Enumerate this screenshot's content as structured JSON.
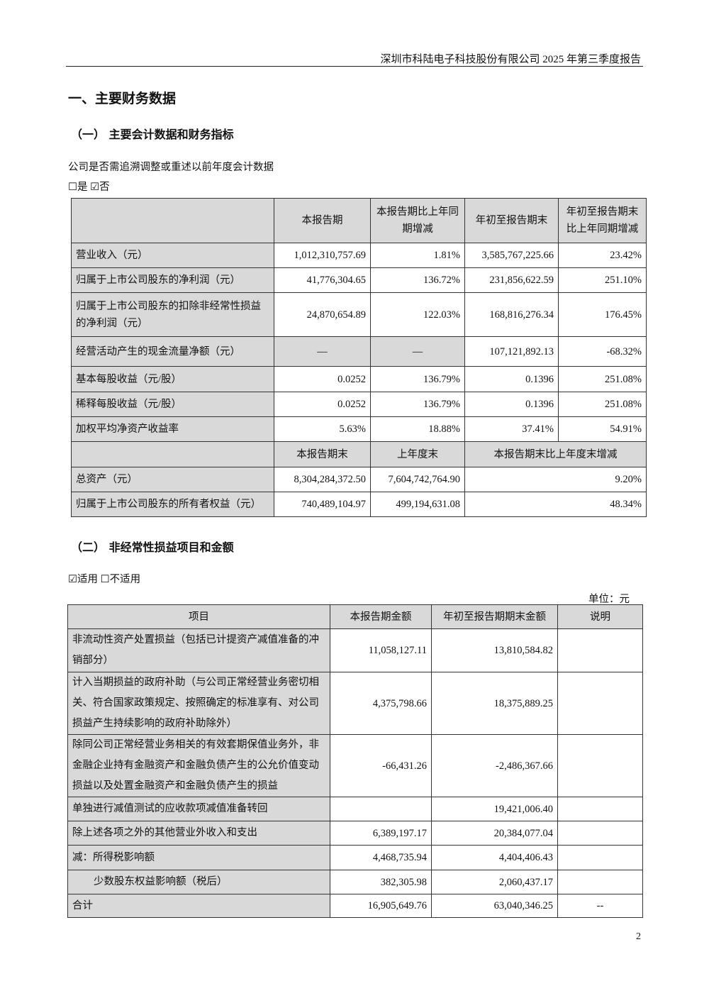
{
  "header": {
    "title": "深圳市科陆电子科技股份有限公司 2025 年第三季度报告"
  },
  "section1": {
    "title": "一、主要财务数据"
  },
  "sub1": {
    "title": "（一）  主要会计数据和财务指标"
  },
  "restate": {
    "question": "公司是否需追溯调整或重述以前年度会计数据",
    "options": "☐是 ☑否"
  },
  "table1": {
    "header": [
      "",
      "本报告期",
      "本报告期比上年同期增减",
      "年初至报告期末",
      "年初至报告期末比上年同期增减"
    ],
    "rows": [
      [
        "营业收入（元）",
        "1,012,310,757.69",
        "1.81%",
        "3,585,767,225.66",
        "23.42%"
      ],
      [
        "归属于上市公司股东的净利润（元）",
        "41,776,304.65",
        "136.72%",
        "231,856,622.59",
        "251.10%"
      ],
      [
        "归属于上市公司股东的扣除非经常性损益的净利润（元）",
        "24,870,654.89",
        "122.03%",
        "168,816,276.34",
        "176.45%"
      ],
      [
        "经营活动产生的现金流量净额（元）",
        "—",
        "—",
        "107,121,892.13",
        "-68.32%"
      ],
      [
        "基本每股收益（元/股）",
        "0.0252",
        "136.79%",
        "0.1396",
        "251.08%"
      ],
      [
        "稀释每股收益（元/股）",
        "0.0252",
        "136.79%",
        "0.1396",
        "251.08%"
      ],
      [
        "加权平均净资产收益率",
        "5.63%",
        "18.88%",
        "37.41%",
        "54.91%"
      ]
    ],
    "header2": [
      "",
      "本报告期末",
      "上年度末",
      "本报告期末比上年度末增减"
    ],
    "rows2": [
      [
        "总资产（元）",
        "8,304,284,372.50",
        "7,604,742,764.90",
        "9.20%"
      ],
      [
        "归属于上市公司股东的所有者权益（元）",
        "740,489,104.97",
        "499,194,631.08",
        "48.34%"
      ]
    ]
  },
  "sub2": {
    "title": "（二）  非经常性损益项目和金额"
  },
  "applicable": {
    "options": "☑适用 ☐不适用"
  },
  "unit": "单位：元",
  "table2": {
    "header": [
      "项目",
      "本报告期金额",
      "年初至报告期期末金额",
      "说明"
    ],
    "rows": [
      [
        "非流动性资产处置损益（包括已计提资产减值准备的冲销部分）",
        "11,058,127.11",
        "13,810,584.82",
        ""
      ],
      [
        "计入当期损益的政府补助（与公司正常经营业务密切相关、符合国家政策规定、按照确定的标准享有、对公司损益产生持续影响的政府补助除外）",
        "4,375,798.66",
        "18,375,889.25",
        ""
      ],
      [
        "除同公司正常经营业务相关的有效套期保值业务外，非金融企业持有金融资产和金融负债产生的公允价值变动损益以及处置金融资产和金融负债产生的损益",
        "-66,431.26",
        "-2,486,367.66",
        ""
      ],
      [
        "单独进行减值测试的应收款项减值准备转回",
        "",
        "19,421,006.40",
        ""
      ],
      [
        "除上述各项之外的其他营业外收入和支出",
        "6,389,197.17",
        "20,384,077.04",
        ""
      ],
      [
        "减：所得税影响额",
        "4,468,735.94",
        "4,404,406.43",
        ""
      ],
      [
        "少数股东权益影响额（税后）",
        "382,305.98",
        "2,060,437.17",
        ""
      ],
      [
        "合计",
        "16,905,649.76",
        "63,040,346.25",
        "--"
      ]
    ]
  },
  "page_number": "2"
}
